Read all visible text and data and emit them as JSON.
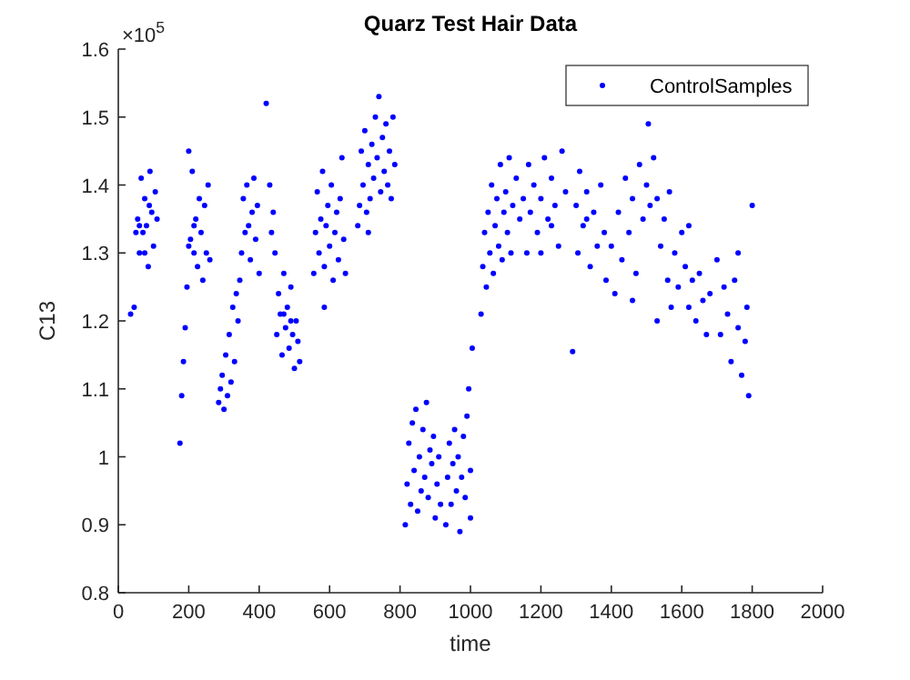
{
  "chart_data": {
    "type": "scatter",
    "title": "Quarz Test Hair Data",
    "xlabel": "time",
    "ylabel": "C13",
    "annotations": [
      "×10$^{5}$"
    ],
    "xlim": [
      0,
      2000
    ],
    "xticks": [
      0,
      200,
      400,
      600,
      800,
      1000,
      1200,
      1400,
      1600,
      1800,
      2000
    ],
    "ylim": [
      0.8,
      1.6
    ],
    "yticks": [
      0.8,
      0.9,
      1,
      1.1,
      1.2,
      1.3,
      1.4,
      1.5,
      1.6
    ],
    "legend": "top right",
    "marker": "circle",
    "grid": false,
    "series": [
      {
        "name": "ControlSamples",
        "color": "#0000ff",
        "x": [
          35,
          45,
          50,
          55,
          60,
          65,
          70,
          75,
          80,
          85,
          90,
          95,
          100,
          105,
          110,
          60,
          75,
          88,
          175,
          180,
          185,
          190,
          195,
          200,
          205,
          210,
          215,
          220,
          225,
          230,
          235,
          240,
          245,
          250,
          255,
          260,
          200,
          215,
          285,
          290,
          295,
          300,
          305,
          310,
          315,
          320,
          325,
          330,
          335,
          340,
          345,
          350,
          355,
          360,
          365,
          370,
          375,
          380,
          385,
          390,
          395,
          400,
          420,
          430,
          435,
          440,
          445,
          450,
          455,
          460,
          465,
          470,
          475,
          480,
          485,
          490,
          495,
          500,
          505,
          510,
          515,
          470,
          490,
          555,
          560,
          565,
          570,
          575,
          580,
          585,
          590,
          595,
          600,
          605,
          610,
          615,
          620,
          625,
          630,
          635,
          640,
          645,
          585,
          680,
          685,
          690,
          695,
          700,
          705,
          710,
          715,
          720,
          725,
          730,
          735,
          740,
          745,
          750,
          755,
          760,
          765,
          770,
          775,
          780,
          785,
          710,
          815,
          820,
          825,
          830,
          835,
          840,
          845,
          850,
          855,
          860,
          865,
          870,
          875,
          880,
          885,
          890,
          895,
          900,
          905,
          910,
          915,
          930,
          935,
          940,
          945,
          950,
          955,
          960,
          965,
          970,
          975,
          980,
          985,
          990,
          995,
          1000,
          1005,
          1000,
          1030,
          1035,
          1040,
          1045,
          1050,
          1055,
          1060,
          1065,
          1070,
          1075,
          1080,
          1085,
          1090,
          1095,
          1100,
          1105,
          1110,
          1115,
          1120,
          1130,
          1140,
          1150,
          1160,
          1165,
          1170,
          1180,
          1190,
          1200,
          1210,
          1220,
          1230,
          1240,
          1250,
          1260,
          1270,
          1200,
          1230,
          1290,
          1300,
          1305,
          1310,
          1320,
          1330,
          1340,
          1350,
          1360,
          1370,
          1380,
          1385,
          1330,
          1400,
          1410,
          1420,
          1430,
          1440,
          1450,
          1460,
          1470,
          1480,
          1490,
          1500,
          1505,
          1510,
          1460,
          1520,
          1530,
          1540,
          1550,
          1560,
          1565,
          1570,
          1530,
          1580,
          1590,
          1600,
          1610,
          1620,
          1630,
          1640,
          1650,
          1660,
          1670,
          1680,
          1620,
          1700,
          1710,
          1720,
          1730,
          1740,
          1750,
          1760,
          1770,
          1780,
          1790,
          1785,
          1800,
          1760
        ],
        "values": [
          1.21,
          1.22,
          1.33,
          1.35,
          1.3,
          1.41,
          1.33,
          1.38,
          1.34,
          1.28,
          1.42,
          1.36,
          1.31,
          1.39,
          1.35,
          1.34,
          1.3,
          1.37,
          1.02,
          1.09,
          1.14,
          1.19,
          1.25,
          1.45,
          1.32,
          1.42,
          1.3,
          1.35,
          1.28,
          1.38,
          1.33,
          1.26,
          1.37,
          1.3,
          1.4,
          1.29,
          1.31,
          1.34,
          1.08,
          1.1,
          1.12,
          1.07,
          1.15,
          1.09,
          1.18,
          1.11,
          1.22,
          1.14,
          1.24,
          1.2,
          1.26,
          1.3,
          1.38,
          1.33,
          1.4,
          1.34,
          1.29,
          1.36,
          1.41,
          1.32,
          1.37,
          1.27,
          1.52,
          1.4,
          1.33,
          1.36,
          1.3,
          1.18,
          1.24,
          1.21,
          1.15,
          1.27,
          1.19,
          1.22,
          1.16,
          1.25,
          1.18,
          1.13,
          1.2,
          1.17,
          1.14,
          1.21,
          1.2,
          1.27,
          1.33,
          1.39,
          1.3,
          1.35,
          1.42,
          1.28,
          1.34,
          1.37,
          1.31,
          1.4,
          1.26,
          1.33,
          1.36,
          1.29,
          1.38,
          1.44,
          1.32,
          1.27,
          1.22,
          1.34,
          1.37,
          1.45,
          1.4,
          1.48,
          1.36,
          1.43,
          1.38,
          1.46,
          1.41,
          1.5,
          1.44,
          1.53,
          1.39,
          1.47,
          1.42,
          1.49,
          1.4,
          1.45,
          1.38,
          1.5,
          1.43,
          1.33,
          0.9,
          0.96,
          1.02,
          0.93,
          1.05,
          0.98,
          1.07,
          0.92,
          1.0,
          0.95,
          1.04,
          0.97,
          1.08,
          0.94,
          1.01,
          0.99,
          1.03,
          0.91,
          0.96,
          1.0,
          0.93,
          0.9,
          0.97,
          1.02,
          0.93,
          0.99,
          1.04,
          0.95,
          1.0,
          0.89,
          0.97,
          1.03,
          0.94,
          1.06,
          1.1,
          0.98,
          1.16,
          0.91,
          1.21,
          1.28,
          1.33,
          1.25,
          1.36,
          1.3,
          1.4,
          1.27,
          1.34,
          1.38,
          1.31,
          1.43,
          1.29,
          1.36,
          1.39,
          1.33,
          1.44,
          1.3,
          1.37,
          1.41,
          1.35,
          1.38,
          1.3,
          1.43,
          1.36,
          1.4,
          1.33,
          1.38,
          1.44,
          1.35,
          1.41,
          1.37,
          1.31,
          1.45,
          1.39,
          1.3,
          1.34,
          1.155,
          1.37,
          1.3,
          1.42,
          1.34,
          1.39,
          1.28,
          1.36,
          1.31,
          1.4,
          1.33,
          1.26,
          1.35,
          1.31,
          1.24,
          1.36,
          1.29,
          1.41,
          1.33,
          1.38,
          1.27,
          1.43,
          1.35,
          1.4,
          1.49,
          1.37,
          1.23,
          1.44,
          1.38,
          1.31,
          1.35,
          1.26,
          1.39,
          1.22,
          1.2,
          1.3,
          1.25,
          1.33,
          1.28,
          1.22,
          1.26,
          1.2,
          1.27,
          1.23,
          1.18,
          1.24,
          1.34,
          1.29,
          1.18,
          1.25,
          1.21,
          1.14,
          1.26,
          1.19,
          1.12,
          1.17,
          1.09,
          1.22,
          1.37,
          1.3
        ]
      }
    ]
  }
}
